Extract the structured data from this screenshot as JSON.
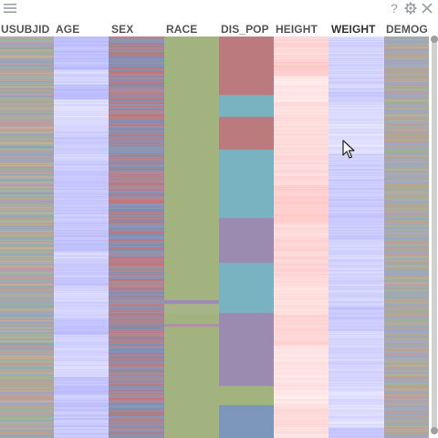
{
  "toolbar": {
    "menu_icon": "hamburger-icon",
    "help_label": "?",
    "settings_icon": "gear-icon",
    "close_icon": "close-icon"
  },
  "columns": [
    {
      "key": "usubjid",
      "label": "USUBJID",
      "mode": "random",
      "palette": [
        "#b7a78c",
        "#9fb09a",
        "#c09c9c",
        "#98a8c0",
        "#a9b4a0",
        "#c6b09a",
        "#8fa6b8",
        "#b39fb3"
      ]
    },
    {
      "key": "age",
      "label": "AGE",
      "mode": "shade",
      "hue": [
        110,
        110,
        255
      ]
    },
    {
      "key": "sex",
      "label": "SEX",
      "mode": "random",
      "palette": [
        "#c0777b",
        "#8a96b8",
        "#b38792",
        "#7f8fb3"
      ]
    },
    {
      "key": "race",
      "label": "RACE",
      "mode": "blocks",
      "blocks": [
        {
          "to": 0.655,
          "color": "#a3b37f"
        },
        {
          "to": 0.665,
          "color": "#9b8ab4"
        },
        {
          "to": 0.69,
          "color": "#a7b388"
        },
        {
          "to": 0.715,
          "color": "#a3b37f"
        },
        {
          "to": 0.722,
          "color": "#b58da0"
        },
        {
          "to": 1,
          "color": "#a3b37f"
        }
      ]
    },
    {
      "key": "dis_pop",
      "label": "DIS_POP",
      "mode": "blocks",
      "blocks": [
        {
          "to": 0.145,
          "color": "#bb7a7e"
        },
        {
          "to": 0.2,
          "color": "#79b2c1"
        },
        {
          "to": 0.28,
          "color": "#bb7a7e"
        },
        {
          "to": 0.452,
          "color": "#79b2c1"
        },
        {
          "to": 0.562,
          "color": "#9c8bb1"
        },
        {
          "to": 0.688,
          "color": "#79b2c1"
        },
        {
          "to": 0.87,
          "color": "#9c8bb1"
        },
        {
          "to": 0.917,
          "color": "#a3b37f"
        },
        {
          "to": 1,
          "color": "#7d97bb"
        }
      ]
    },
    {
      "key": "height",
      "label": "HEIGHT",
      "mode": "shade",
      "hue": [
        255,
        150,
        150
      ]
    },
    {
      "key": "weight",
      "label": "WEIGHT",
      "mode": "shade",
      "hue": [
        120,
        120,
        255
      ]
    },
    {
      "key": "demog",
      "label": "DEMOG",
      "mode": "random",
      "palette": [
        "#b7a78c",
        "#9fb09a",
        "#c09c9c",
        "#98a8c0",
        "#b3b0a0",
        "#a0a7c4"
      ]
    }
  ]
}
